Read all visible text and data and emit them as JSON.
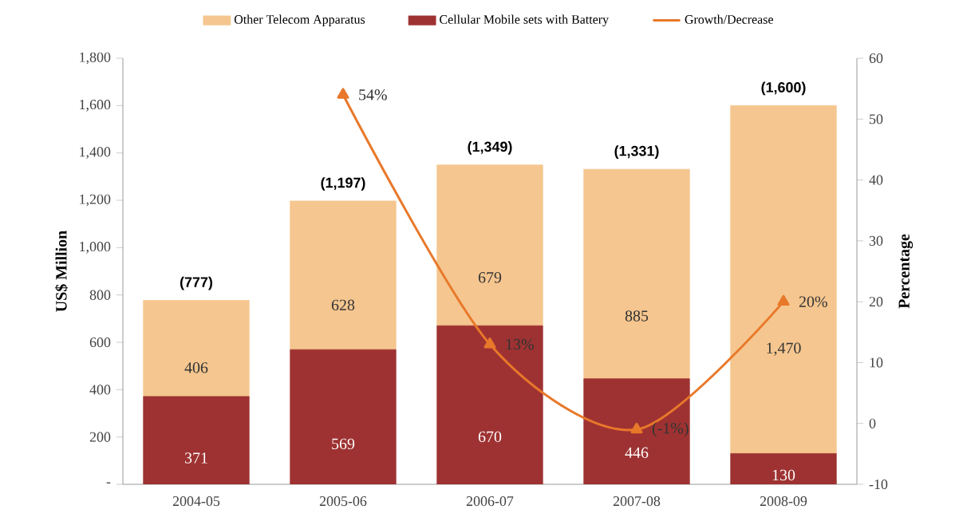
{
  "chart_data": {
    "type": "bar",
    "stacked": true,
    "categories": [
      "2004-05",
      "2005-06",
      "2006-07",
      "2007-08",
      "2008-09"
    ],
    "series": [
      {
        "name": "Cellular Mobile sets with Battery",
        "color": "#9e3232",
        "values": [
          371,
          569,
          670,
          446,
          130
        ],
        "value_labels": [
          "371",
          "569",
          "670",
          "446",
          "130"
        ]
      },
      {
        "name": "Other Telecom Apparatus",
        "color": "#f5c68f",
        "values": [
          406,
          628,
          679,
          885,
          1470
        ],
        "value_labels": [
          "406",
          "628",
          "679",
          "885",
          "1,470"
        ]
      },
      {
        "name": "Growth/Decrease",
        "type": "line",
        "axis": "y2",
        "color": "#e8782a",
        "values": [
          null,
          54,
          13,
          -1,
          20
        ],
        "value_labels": [
          null,
          "54%",
          "13%",
          "(-1%)",
          "20%"
        ]
      }
    ],
    "totals": [
      "(777)",
      "(1,197)",
      "(1,349)",
      "(1,331)",
      "(1,600)"
    ],
    "marker": "triangle",
    "ylabel": "US$ Million",
    "y2label": "Percentage",
    "ylim": [
      0,
      1800
    ],
    "yticks": [
      {
        "value": 0,
        "label": "-"
      },
      {
        "value": 200,
        "label": "200"
      },
      {
        "value": 400,
        "label": "400"
      },
      {
        "value": 600,
        "label": "600"
      },
      {
        "value": 800,
        "label": "800"
      },
      {
        "value": 1000,
        "label": "1,000"
      },
      {
        "value": 1200,
        "label": "1,200"
      },
      {
        "value": 1400,
        "label": "1,400"
      },
      {
        "value": 1600,
        "label": "1,600"
      },
      {
        "value": 1800,
        "label": "1,800"
      }
    ],
    "y2lim": [
      -10,
      60
    ],
    "y2ticks": [
      -10,
      0,
      10,
      20,
      30,
      40,
      50,
      60
    ],
    "legend": "top"
  }
}
